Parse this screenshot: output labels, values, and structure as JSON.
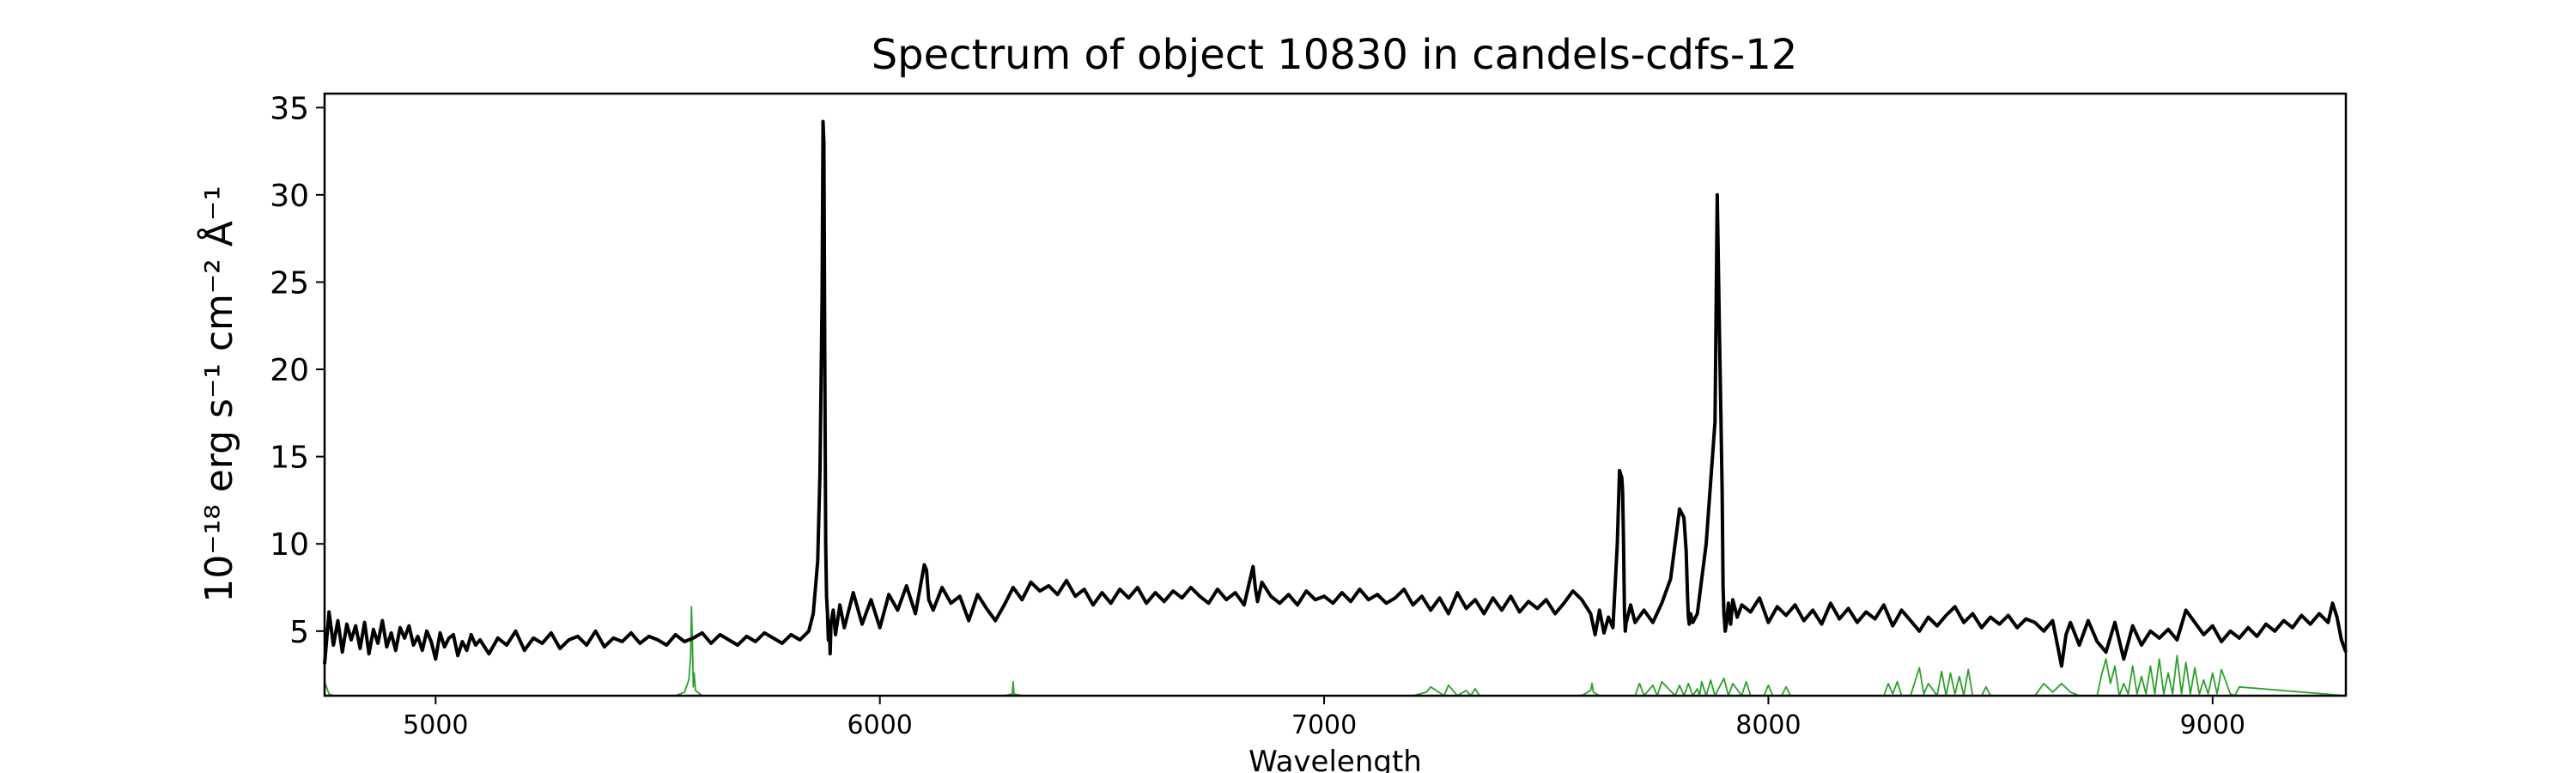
{
  "chart_data": {
    "type": "line",
    "title": "Spectrum of object 10830 in candels-cdfs-12",
    "xlabel": "Wavelength",
    "ylabel": "10⁻¹⁸ erg s⁻¹ cm⁻² Å⁻¹",
    "xlim": [
      4750,
      9300
    ],
    "ylim": [
      1.3,
      35.8
    ],
    "xticks": [
      5000,
      6000,
      7000,
      8000,
      9000
    ],
    "yticks": [
      5,
      10,
      15,
      20,
      25,
      30,
      35
    ],
    "grid": false,
    "colors": {
      "flux": "#000000",
      "sky": "#2ca02c",
      "axes": "#000000"
    },
    "series": [
      {
        "id": "flux",
        "x": [
          4750,
          4760,
          4770,
          4780,
          4790,
          4800,
          4810,
          4820,
          4830,
          4840,
          4850,
          4860,
          4870,
          4880,
          4890,
          4900,
          4910,
          4920,
          4930,
          4940,
          4950,
          4960,
          4970,
          4980,
          4990,
          5000,
          5010,
          5020,
          5030,
          5040,
          5050,
          5060,
          5070,
          5080,
          5090,
          5100,
          5120,
          5140,
          5160,
          5180,
          5200,
          5220,
          5240,
          5260,
          5280,
          5300,
          5320,
          5340,
          5360,
          5380,
          5400,
          5420,
          5440,
          5460,
          5480,
          5500,
          5520,
          5540,
          5560,
          5580,
          5600,
          5620,
          5640,
          5660,
          5680,
          5700,
          5720,
          5740,
          5760,
          5780,
          5800,
          5820,
          5840,
          5850,
          5860,
          5865,
          5870,
          5872,
          5874,
          5876,
          5878,
          5880,
          5882,
          5884,
          5886,
          5888,
          5890,
          5895,
          5900,
          5910,
          5920,
          5940,
          5960,
          5980,
          6000,
          6020,
          6040,
          6060,
          6080,
          6100,
          6105,
          6110,
          6120,
          6140,
          6160,
          6180,
          6200,
          6220,
          6240,
          6260,
          6280,
          6300,
          6320,
          6340,
          6360,
          6380,
          6400,
          6420,
          6440,
          6460,
          6480,
          6500,
          6520,
          6540,
          6560,
          6580,
          6600,
          6620,
          6640,
          6660,
          6680,
          6700,
          6720,
          6740,
          6760,
          6780,
          6800,
          6820,
          6840,
          6845,
          6850,
          6860,
          6880,
          6900,
          6920,
          6940,
          6960,
          6980,
          7000,
          7020,
          7040,
          7060,
          7080,
          7100,
          7120,
          7140,
          7160,
          7180,
          7200,
          7220,
          7240,
          7260,
          7280,
          7300,
          7320,
          7340,
          7360,
          7380,
          7400,
          7420,
          7440,
          7460,
          7480,
          7500,
          7520,
          7540,
          7560,
          7580,
          7600,
          7610,
          7620,
          7630,
          7640,
          7650,
          7660,
          7665,
          7670,
          7672,
          7674,
          7676,
          7678,
          7680,
          7685,
          7690,
          7700,
          7720,
          7740,
          7760,
          7780,
          7800,
          7810,
          7815,
          7818,
          7820,
          7822,
          7825,
          7830,
          7840,
          7860,
          7880,
          7885,
          7890,
          7893,
          7896,
          7898,
          7900,
          7903,
          7906,
          7910,
          7915,
          7920,
          7930,
          7940,
          7960,
          7980,
          8000,
          8020,
          8040,
          8060,
          8080,
          8100,
          8120,
          8140,
          8160,
          8180,
          8200,
          8220,
          8240,
          8260,
          8280,
          8300,
          8320,
          8340,
          8360,
          8380,
          8400,
          8420,
          8440,
          8460,
          8480,
          8500,
          8520,
          8540,
          8560,
          8580,
          8600,
          8620,
          8640,
          8660,
          8670,
          8680,
          8700,
          8720,
          8740,
          8760,
          8780,
          8800,
          8820,
          8840,
          8860,
          8880,
          8900,
          8920,
          8940,
          8960,
          8980,
          9000,
          9020,
          9040,
          9060,
          9080,
          9100,
          9120,
          9140,
          9160,
          9180,
          9200,
          9220,
          9240,
          9260,
          9270,
          9280,
          9290,
          9300
        ],
        "y": [
          3.1,
          6.1,
          4.2,
          5.6,
          3.8,
          5.4,
          4.5,
          5.3,
          4.0,
          5.5,
          3.7,
          5.1,
          4.3,
          5.6,
          4.1,
          4.9,
          3.9,
          5.2,
          4.6,
          5.3,
          4.2,
          4.7,
          3.9,
          5.0,
          4.4,
          3.4,
          4.9,
          4.1,
          4.6,
          4.8,
          3.6,
          4.4,
          3.9,
          4.8,
          4.2,
          4.5,
          3.7,
          4.6,
          4.2,
          5.0,
          3.9,
          4.6,
          4.3,
          4.9,
          4.0,
          4.5,
          4.7,
          4.2,
          5.0,
          4.1,
          4.6,
          4.4,
          4.9,
          4.3,
          4.7,
          4.5,
          4.2,
          4.8,
          4.4,
          4.6,
          4.9,
          4.3,
          4.8,
          4.5,
          4.2,
          4.7,
          4.4,
          4.9,
          4.6,
          4.3,
          4.8,
          4.5,
          5.0,
          6.0,
          9.0,
          14.0,
          24.0,
          34.2,
          33.0,
          20.0,
          10.0,
          7.0,
          6.0,
          4.5,
          5.5,
          3.7,
          5.5,
          6.2,
          4.8,
          6.5,
          5.2,
          7.2,
          5.4,
          6.8,
          5.2,
          7.1,
          6.2,
          7.6,
          6.0,
          8.8,
          8.5,
          6.8,
          6.2,
          7.5,
          6.6,
          7.0,
          5.6,
          7.1,
          6.3,
          5.6,
          6.5,
          7.5,
          6.8,
          7.8,
          7.3,
          7.6,
          7.1,
          7.9,
          7.0,
          7.4,
          6.5,
          7.2,
          6.6,
          7.4,
          6.9,
          7.5,
          6.6,
          7.2,
          6.7,
          7.3,
          6.9,
          7.5,
          7.0,
          6.6,
          7.4,
          6.8,
          7.2,
          6.5,
          8.7,
          7.5,
          6.7,
          7.8,
          7.0,
          6.6,
          7.1,
          6.5,
          7.3,
          6.8,
          7.0,
          6.6,
          7.2,
          6.7,
          7.4,
          6.8,
          7.1,
          6.6,
          6.9,
          7.4,
          6.5,
          7.0,
          6.2,
          6.9,
          6.0,
          7.2,
          6.3,
          6.8,
          6.0,
          6.9,
          6.2,
          7.0,
          6.1,
          6.7,
          6.3,
          6.8,
          6.0,
          6.6,
          7.3,
          6.8,
          6.0,
          4.8,
          6.2,
          4.9,
          5.8,
          5.2,
          10.0,
          14.2,
          13.8,
          13.0,
          10.0,
          6.2,
          5.0,
          5.5,
          6.0,
          6.5,
          5.5,
          6.2,
          5.5,
          6.6,
          8.0,
          12.0,
          11.5,
          9.6,
          7.0,
          5.8,
          5.4,
          6.0,
          5.5,
          6.0,
          10.0,
          17.0,
          30.0,
          22.0,
          17.5,
          13.0,
          7.5,
          6.0,
          5.0,
          5.5,
          6.6,
          5.4,
          6.8,
          5.8,
          6.5,
          6.1,
          6.9,
          5.5,
          6.4,
          5.9,
          6.5,
          5.6,
          6.2,
          5.4,
          6.6,
          5.7,
          6.3,
          5.5,
          6.1,
          5.7,
          6.5,
          5.3,
          6.2,
          5.6,
          5.0,
          5.8,
          5.3,
          5.9,
          6.4,
          5.5,
          6.0,
          5.2,
          5.8,
          5.4,
          5.9,
          5.2,
          5.7,
          5.5,
          5.0,
          5.6,
          3.0,
          4.8,
          5.5,
          4.2,
          5.6,
          4.4,
          3.8,
          5.5,
          3.4,
          5.3,
          4.2,
          5.0,
          4.6,
          5.1,
          4.5,
          6.2,
          5.5,
          4.8,
          5.3,
          4.4,
          5.0,
          4.6,
          5.2,
          4.7,
          5.4,
          5.0,
          5.6,
          5.2,
          5.9,
          5.4,
          6.0,
          5.5,
          6.6,
          5.8,
          4.5,
          3.8
        ]
      },
      {
        "id": "sky",
        "x": [
          4750,
          4760,
          4770,
          5540,
          5560,
          5570,
          5574,
          5576,
          5577,
          5578,
          5579,
          5580,
          5582,
          5585,
          5600,
          6280,
          6298,
          6300,
          6302,
          6320,
          7200,
          7230,
          7240,
          7270,
          7280,
          7300,
          7320,
          7330,
          7340,
          7350,
          7370,
          7580,
          7600,
          7603,
          7606,
          7620,
          7700,
          7710,
          7720,
          7740,
          7750,
          7760,
          7790,
          7800,
          7810,
          7820,
          7830,
          7840,
          7845,
          7850,
          7860,
          7870,
          7880,
          7900,
          7910,
          7920,
          7940,
          7950,
          7960,
          7990,
          8000,
          8010,
          8030,
          8040,
          8050,
          8260,
          8270,
          8280,
          8290,
          8300,
          8320,
          8340,
          8350,
          8360,
          8380,
          8390,
          8400,
          8410,
          8420,
          8430,
          8440,
          8450,
          8460,
          8480,
          8490,
          8500,
          8520,
          8600,
          8620,
          8640,
          8660,
          8680,
          8700,
          8720,
          8740,
          8750,
          8760,
          8770,
          8780,
          8790,
          8800,
          8810,
          8820,
          8830,
          8840,
          8850,
          8860,
          8870,
          8880,
          8890,
          8900,
          8910,
          8920,
          8930,
          8940,
          8950,
          8960,
          8970,
          8980,
          8990,
          9000,
          9010,
          9020,
          9040,
          9050,
          9060,
          9300
        ],
        "y": [
          2.1,
          1.4,
          1.3,
          1.3,
          1.5,
          2.2,
          3.5,
          6.4,
          5.2,
          4.3,
          3.0,
          1.8,
          2.6,
          1.6,
          1.3,
          1.3,
          1.4,
          2.1,
          1.4,
          1.3,
          1.3,
          1.5,
          1.8,
          1.3,
          1.9,
          1.3,
          1.6,
          1.3,
          1.7,
          1.3,
          1.3,
          1.3,
          1.6,
          2.0,
          1.5,
          1.3,
          1.3,
          2.0,
          1.3,
          1.9,
          1.3,
          2.1,
          1.3,
          1.9,
          1.3,
          2.0,
          1.3,
          1.7,
          1.3,
          2.1,
          1.3,
          2.2,
          1.3,
          2.3,
          1.3,
          2.0,
          1.3,
          2.1,
          1.3,
          1.3,
          1.9,
          1.3,
          1.3,
          1.8,
          1.3,
          1.3,
          2.0,
          1.4,
          2.1,
          1.3,
          1.3,
          2.9,
          1.4,
          2.0,
          1.3,
          2.7,
          1.3,
          2.6,
          1.4,
          2.4,
          1.3,
          2.8,
          1.3,
          1.3,
          1.8,
          1.3,
          1.3,
          1.3,
          2.0,
          1.5,
          2.0,
          1.5,
          1.3,
          1.3,
          1.3,
          2.5,
          3.4,
          2.0,
          3.0,
          1.3,
          2.0,
          1.4,
          3.0,
          1.4,
          2.4,
          1.4,
          3.0,
          1.4,
          3.4,
          1.4,
          2.6,
          1.4,
          3.6,
          1.4,
          3.2,
          1.4,
          2.9,
          1.4,
          2.2,
          1.4,
          2.6,
          1.4,
          2.8,
          1.4,
          1.3,
          1.8,
          1.3
        ]
      }
    ]
  }
}
